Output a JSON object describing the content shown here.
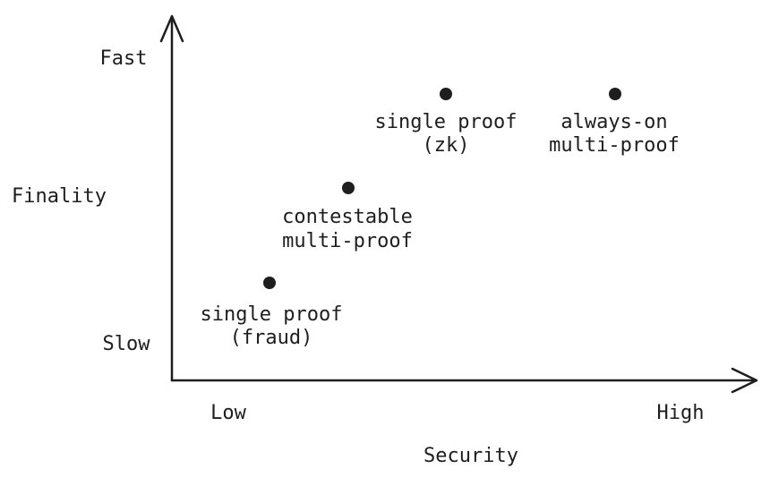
{
  "axes": {
    "y": {
      "label": "Finality",
      "high": "Fast",
      "low": "Slow"
    },
    "x": {
      "label": "Security",
      "low": "Low",
      "high": "High"
    }
  },
  "nodes": [
    {
      "lines": [
        "single proof",
        "(fraud)"
      ]
    },
    {
      "lines": [
        "contestable",
        "multi-proof"
      ]
    },
    {
      "lines": [
        "single proof",
        "(zk)"
      ]
    },
    {
      "lines": [
        "always-on",
        "multi-proof"
      ]
    }
  ]
}
